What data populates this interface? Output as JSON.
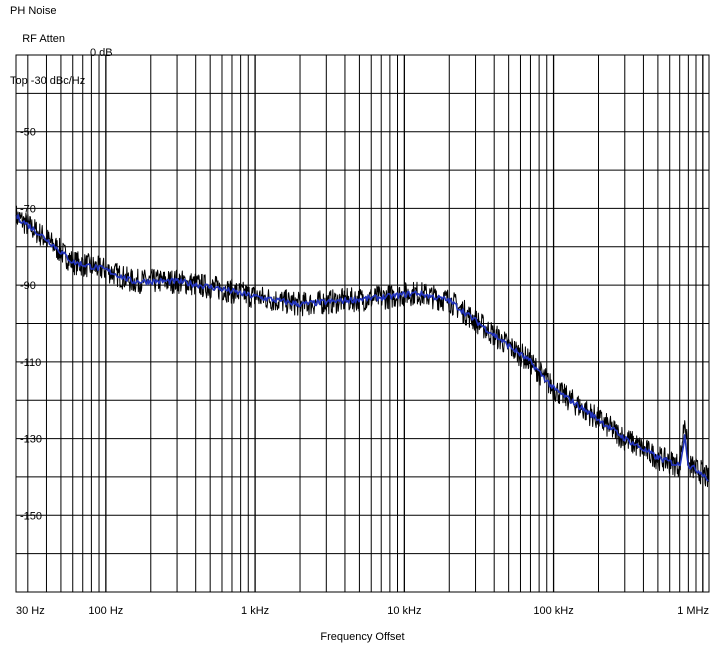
{
  "header": {
    "mode": "PH Noise",
    "rf_atten_label": "RF Atten",
    "rf_atten_value": "0 dB",
    "top_label": "Top -30 dBc/Hz"
  },
  "chart_data": {
    "type": "line",
    "title": "",
    "xlabel": "Frequency Offset",
    "ylabel": "",
    "x_scale": "log",
    "xlim": [
      25,
      1100000
    ],
    "ylim": [
      -170,
      -30
    ],
    "grid": true,
    "x_ticks": [
      {
        "value": 30,
        "label": "30 Hz"
      },
      {
        "value": 100,
        "label": "100 Hz"
      },
      {
        "value": 1000,
        "label": "1 kHz"
      },
      {
        "value": 10000,
        "label": "10 kHz"
      },
      {
        "value": 100000,
        "label": "100 kHz"
      },
      {
        "value": 1000000,
        "label": "1 MHz"
      }
    ],
    "y_ticks": [
      {
        "value": -50,
        "label": "-50"
      },
      {
        "value": -70,
        "label": "-70"
      },
      {
        "value": -90,
        "label": "-90"
      },
      {
        "value": -110,
        "label": "-110"
      },
      {
        "value": -130,
        "label": "-130"
      },
      {
        "value": -150,
        "label": "-150"
      }
    ],
    "colors": {
      "raw": "#000000",
      "smoothed": "#2233bb",
      "grid": "#000000"
    },
    "series": [
      {
        "key": "raw",
        "x": [
          25,
          40,
          60,
          100,
          150,
          300,
          600,
          1000,
          2000,
          4000,
          8000,
          12000,
          20000,
          40000,
          70000,
          100000,
          200000,
          300000,
          500000,
          700000,
          760000,
          800000,
          1000000,
          1100000
        ],
        "y": [
          -72,
          -78,
          -84,
          -86,
          -89,
          -89,
          -91,
          -93,
          -95,
          -94,
          -93,
          -92,
          -94,
          -103,
          -110,
          -117,
          -125,
          -130,
          -135,
          -137,
          -124,
          -137,
          -139,
          -141
        ]
      },
      {
        "key": "smoothed",
        "x": [
          25,
          40,
          60,
          100,
          150,
          300,
          600,
          1000,
          2000,
          4000,
          8000,
          12000,
          20000,
          40000,
          70000,
          100000,
          200000,
          300000,
          500000,
          700000,
          760000,
          800000,
          1000000,
          1100000
        ],
        "y": [
          -72,
          -78,
          -84,
          -86,
          -89,
          -89,
          -91,
          -93,
          -95,
          -94,
          -93,
          -92,
          -94,
          -103,
          -110,
          -117,
          -125,
          -130,
          -135,
          -137,
          -129,
          -137,
          -139,
          -141
        ]
      }
    ]
  }
}
